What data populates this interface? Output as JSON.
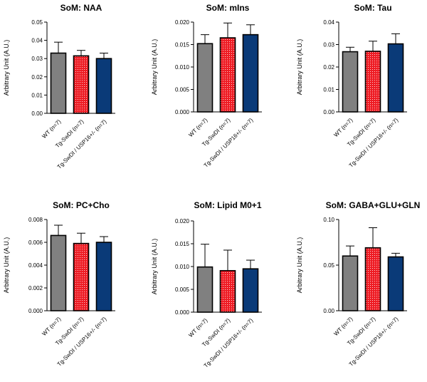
{
  "chart_data": [
    {
      "type": "bar",
      "title": "SoM: NAA",
      "ylabel": "Arbitrary Unit (A.U.)",
      "categories": [
        "WT (n=7)",
        "Tg-SwDI (n=7)",
        "Tg-SwDI / USP16+/- (n=7)"
      ],
      "values": [
        0.033,
        0.0315,
        0.03
      ],
      "errors": [
        0.006,
        0.003,
        0.003
      ],
      "ylim": [
        0,
        0.05
      ],
      "yticks": [
        "0.00",
        "0.01",
        "0.02",
        "0.03",
        "0.04",
        "0.05"
      ]
    },
    {
      "type": "bar",
      "title": "SoM: mIns",
      "ylabel": "Arbitrary Unit (A.U.)",
      "categories": [
        "WT (n=7)",
        "Tg-SwDI (n=7)",
        "Tg-SwDI / USP16+/- (n=7)"
      ],
      "values": [
        0.0152,
        0.0165,
        0.0172
      ],
      "errors": [
        0.002,
        0.0033,
        0.0022
      ],
      "ylim": [
        0,
        0.02
      ],
      "yticks": [
        "0.000",
        "0.005",
        "0.010",
        "0.015",
        "0.020"
      ]
    },
    {
      "type": "bar",
      "title": "SoM: Tau",
      "ylabel": "Arbitrary Unit (A.U.)",
      "categories": [
        "WT (n=7)",
        "Tg-SwDI (n=7)",
        "Tg-SwDI / USP16+/- (n=7)"
      ],
      "values": [
        0.0268,
        0.027,
        0.0303
      ],
      "errors": [
        0.002,
        0.0045,
        0.0045
      ],
      "ylim": [
        0,
        0.04
      ],
      "yticks": [
        "0.00",
        "0.01",
        "0.02",
        "0.03",
        "0.04"
      ]
    },
    {
      "type": "bar",
      "title": "SoM: PC+Cho",
      "ylabel": "Arbitrary Unit (A.U.)",
      "categories": [
        "WT (n=7)",
        "Tg-SwDI (n=7)",
        "Tg-SwDI / USP16+/- (n=7)"
      ],
      "values": [
        0.0066,
        0.0059,
        0.006
      ],
      "errors": [
        0.0009,
        0.0009,
        0.0005
      ],
      "ylim": [
        0,
        0.008
      ],
      "yticks": [
        "0.000",
        "0.002",
        "0.004",
        "0.006",
        "0.008"
      ]
    },
    {
      "type": "bar",
      "title": "SoM: Lipid M0+1",
      "ylabel": "Arbitrary Unit (A.U.)",
      "categories": [
        "WT (n=7)",
        "Tg-SwDI (n=7)",
        "Tg-SwDI / USP16+/- (n=7)"
      ],
      "values": [
        0.0099,
        0.0091,
        0.0095
      ],
      "errors": [
        0.005,
        0.0045,
        0.0019
      ],
      "ylim": [
        0,
        0.02
      ],
      "yticks": [
        "0.000",
        "0.005",
        "0.010",
        "0.015",
        "0.020"
      ]
    },
    {
      "type": "bar",
      "title": "SoM: GABA+GLU+GLN",
      "ylabel": "Arbitrary Unit (A.U.)",
      "categories": [
        "WT (n=7)",
        "Tg-SwDI (n=7)",
        "Tg-SwDI / USP16+/- (n=7)"
      ],
      "values": [
        0.06,
        0.069,
        0.059
      ],
      "errors": [
        0.011,
        0.022,
        0.004
      ],
      "ylim": [
        0,
        0.1
      ],
      "yticks": [
        "0.00",
        "0.05",
        "0.10"
      ]
    }
  ],
  "colors": {
    "wt": "#808080",
    "tg": "#ee1c24",
    "tg_dots": "#ffffff",
    "usp": "#0a3a78",
    "axis": "#000000"
  }
}
